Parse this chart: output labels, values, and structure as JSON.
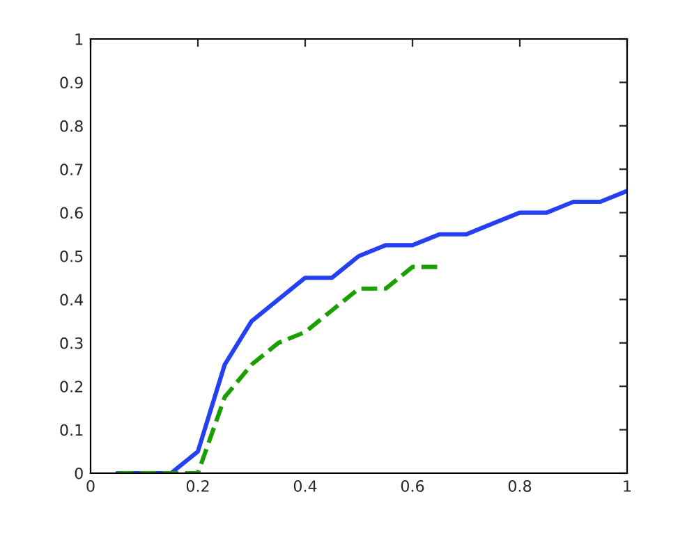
{
  "chart_data": {
    "type": "line",
    "xlim": [
      0,
      1
    ],
    "ylim": [
      0,
      1
    ],
    "xticks": [
      0,
      0.2,
      0.4,
      0.6,
      0.8,
      1
    ],
    "yticks": [
      0,
      0.1,
      0.2,
      0.3,
      0.4,
      0.5,
      0.6,
      0.7,
      0.8,
      0.9,
      1
    ],
    "grid": false,
    "legend": false,
    "marker": "none",
    "series": [
      {
        "color": "#2440f0",
        "line_style": "solid",
        "x": [
          0.05,
          0.1,
          0.15,
          0.2,
          0.25,
          0.3,
          0.35,
          0.4,
          0.45,
          0.5,
          0.55,
          0.6,
          0.65,
          0.7,
          0.75,
          0.8,
          0.85,
          0.9,
          0.95,
          1
        ],
        "values": [
          0,
          0,
          0,
          0.05,
          0.25,
          0.35,
          0.4,
          0.45,
          0.45,
          0.5,
          0.525,
          0.525,
          0.55,
          0.55,
          0.575,
          0.6,
          0.6,
          0.625,
          0.625,
          0.65
        ]
      },
      {
        "color": "#1a9e00",
        "line_style": "dashed",
        "x": [
          0.05,
          0.1,
          0.15,
          0.2,
          0.25,
          0.3,
          0.35,
          0.4,
          0.45,
          0.5,
          0.55,
          0.6,
          0.65
        ],
        "values": [
          0,
          0,
          0,
          0,
          0.175,
          0.25,
          0.3,
          0.325,
          0.375,
          0.425,
          0.425,
          0.475,
          0.475
        ]
      }
    ]
  }
}
